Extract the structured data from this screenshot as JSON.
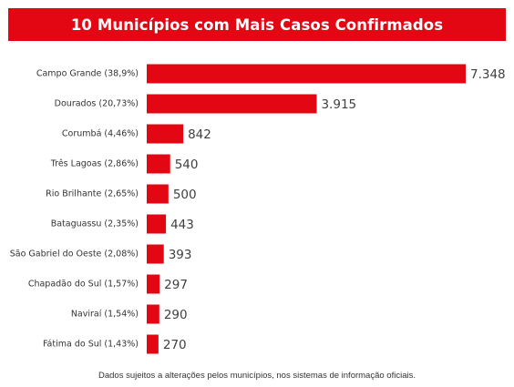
{
  "title": "10 Municípios com Mais Casos Confirmados",
  "footnote": "Dados sujeitos a alterações pelos municípios, nos sistemas de informação oficiais.",
  "colors": {
    "accent": "#e30613",
    "bar": "#e30613"
  },
  "chart_data": {
    "type": "bar",
    "orientation": "horizontal",
    "title": "10 Municípios com Mais Casos Confirmados",
    "xlabel": "",
    "ylabel": "",
    "grid": false,
    "legend": "none",
    "xlim": [
      0,
      7348
    ],
    "categories": [
      "Campo Grande (38,9%)",
      "Dourados (20,73%)",
      "Corumbá (4,46%)",
      "Três Lagoas (2,86%)",
      "Rio Brilhante (2,65%)",
      "Bataguassu (2,35%)",
      "São Gabriel do Oeste (2,08%)",
      "Chapadão do Sul (1,57%)",
      "Naviraí (1,54%)",
      "Fátima do Sul (1,43%)"
    ],
    "values": [
      7348,
      3915,
      842,
      540,
      500,
      443,
      393,
      297,
      290,
      270
    ],
    "value_labels": [
      "7.348",
      "3.915",
      "842",
      "540",
      "500",
      "443",
      "393",
      "297",
      "290",
      "270"
    ]
  }
}
